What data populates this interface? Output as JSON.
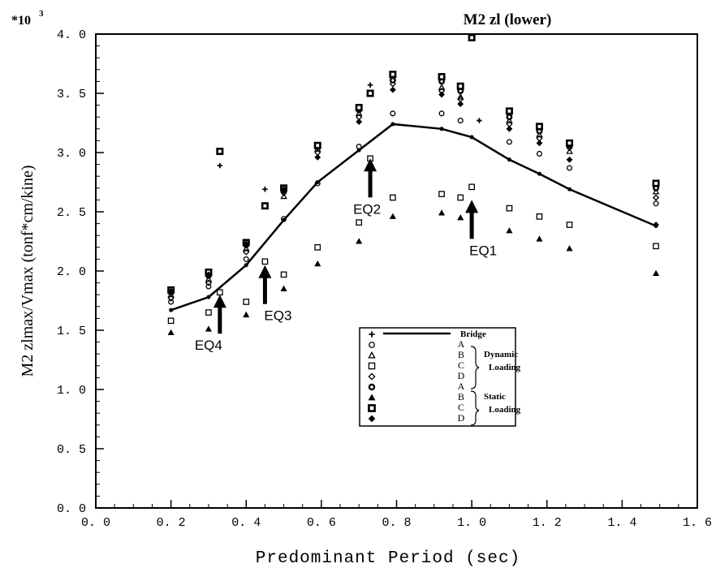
{
  "chart_data": {
    "type": "scatter",
    "title": "M2 zl (lower)",
    "xlabel": "Predominant Period (sec)",
    "ylabel": "M2 zlmax/Vmax (tonf*cm/kine)",
    "y_multiplier": "*10",
    "y_multiplier_exp": "3",
    "xlim": [
      0.0,
      1.6
    ],
    "ylim": [
      0.0,
      4.0
    ],
    "x_ticks": [
      "0. 0",
      "0. 2",
      "0. 4",
      "0. 6",
      "0. 8",
      "1. 0",
      "1. 2",
      "1. 4",
      "1. 6"
    ],
    "y_ticks": [
      "0. 0",
      "0. 5",
      "1. 0",
      "1. 5",
      "2. 0",
      "2. 5",
      "3. 0",
      "3. 5",
      "4. 0"
    ],
    "grid": false,
    "legend_position": "lower-right-center",
    "legend": {
      "bridge_label": "Bridge",
      "letters": [
        "A",
        "B",
        "C",
        "D",
        "A",
        "B",
        "C",
        "D"
      ],
      "dynamic_label_1": "Dynamic",
      "dynamic_label_2": "Loading",
      "static_label_1": "Static",
      "static_label_2": "Loading"
    },
    "annotations": [
      {
        "label": "EQ4",
        "x": 0.33,
        "y": 1.8
      },
      {
        "label": "EQ3",
        "x": 0.45,
        "y": 2.05
      },
      {
        "label": "EQ2",
        "x": 0.73,
        "y": 2.95
      },
      {
        "label": "EQ1",
        "x": 1.0,
        "y": 2.6
      }
    ],
    "series": [
      {
        "name": "Bridge",
        "marker": "line",
        "x": [
          0.2,
          0.3,
          0.4,
          0.5,
          0.59,
          0.7,
          0.79,
          0.92,
          1.0,
          1.1,
          1.18,
          1.26,
          1.49
        ],
        "y": [
          1.67,
          1.78,
          2.05,
          2.43,
          2.75,
          3.02,
          3.24,
          3.2,
          3.13,
          2.94,
          2.82,
          2.69,
          2.38
        ]
      },
      {
        "name": "Bridge",
        "marker": "plus",
        "x": [
          0.33,
          0.45,
          0.73,
          1.02
        ],
        "y": [
          2.89,
          2.69,
          3.57,
          3.27
        ]
      },
      {
        "name": "A Dynamic",
        "marker": "circle",
        "x": [
          0.2,
          0.3,
          0.4,
          0.5,
          0.59,
          0.7,
          0.79,
          0.92,
          0.97,
          1.1,
          1.18,
          1.26,
          1.49
        ],
        "y": [
          1.74,
          1.87,
          2.1,
          2.44,
          2.74,
          3.05,
          3.33,
          3.33,
          3.27,
          3.09,
          2.99,
          2.87,
          2.57
        ]
      },
      {
        "name": "B Dynamic",
        "marker": "triangle-open",
        "x": [
          0.2,
          0.3,
          0.4,
          0.5,
          0.59,
          0.7,
          0.79,
          0.92,
          0.97,
          1.1,
          1.18,
          1.26,
          1.49
        ],
        "y": [
          1.8,
          1.93,
          2.19,
          2.63,
          3.03,
          3.33,
          3.63,
          3.55,
          3.47,
          3.27,
          3.15,
          3.01,
          2.67
        ]
      },
      {
        "name": "C Dynamic",
        "marker": "square-open",
        "x": [
          0.2,
          0.3,
          0.33,
          0.4,
          0.45,
          0.5,
          0.59,
          0.7,
          0.73,
          0.79,
          0.92,
          0.97,
          1.0,
          1.1,
          1.18,
          1.26,
          1.49
        ],
        "y": [
          1.58,
          1.65,
          1.82,
          1.74,
          2.08,
          1.97,
          2.2,
          2.41,
          2.95,
          2.62,
          2.65,
          2.62,
          2.71,
          2.53,
          2.46,
          2.39,
          2.21
        ]
      },
      {
        "name": "D Dynamic",
        "marker": "diamond-open",
        "x": [
          0.2,
          0.3,
          0.4,
          0.5,
          0.59,
          0.7,
          0.79,
          0.92,
          0.97,
          1.1,
          1.18,
          1.26,
          1.49
        ],
        "y": [
          1.77,
          1.9,
          2.16,
          2.66,
          3.0,
          3.3,
          3.58,
          3.52,
          3.45,
          3.24,
          3.12,
          3.04,
          2.62
        ]
      },
      {
        "name": "A Static",
        "marker": "circle-filled",
        "x": [
          0.2,
          0.3,
          0.4,
          0.5,
          0.59,
          0.7,
          0.79,
          0.92,
          0.97,
          1.1,
          1.18,
          1.26,
          1.49
        ],
        "y": [
          1.82,
          1.96,
          2.22,
          2.68,
          3.05,
          3.36,
          3.61,
          3.6,
          3.52,
          3.3,
          3.18,
          3.06,
          2.7
        ]
      },
      {
        "name": "B Static",
        "marker": "triangle-filled",
        "x": [
          0.2,
          0.3,
          0.4,
          0.5,
          0.59,
          0.7,
          0.79,
          0.92,
          0.97,
          1.1,
          1.18,
          1.26,
          1.49
        ],
        "y": [
          1.48,
          1.51,
          1.63,
          1.85,
          2.06,
          2.25,
          2.46,
          2.49,
          2.45,
          2.34,
          2.27,
          2.19,
          1.98
        ]
      },
      {
        "name": "C Static",
        "marker": "square-heavy",
        "x": [
          0.2,
          0.3,
          0.33,
          0.4,
          0.45,
          0.5,
          0.59,
          0.7,
          0.73,
          0.79,
          0.92,
          0.97,
          1.0,
          1.1,
          1.18,
          1.26,
          1.49
        ],
        "y": [
          1.84,
          1.99,
          3.01,
          2.24,
          2.55,
          2.7,
          3.06,
          3.38,
          3.5,
          3.66,
          3.64,
          3.56,
          3.97,
          3.35,
          3.22,
          3.08,
          2.74
        ]
      },
      {
        "name": "D Static",
        "marker": "diamond-filled",
        "x": [
          0.2,
          0.3,
          0.4,
          0.5,
          0.59,
          0.7,
          0.79,
          0.92,
          0.97,
          1.1,
          1.18,
          1.26,
          1.49
        ],
        "y": [
          1.83,
          1.97,
          2.23,
          2.69,
          2.96,
          3.26,
          3.53,
          3.49,
          3.41,
          3.2,
          3.08,
          2.94,
          2.39
        ]
      }
    ]
  }
}
